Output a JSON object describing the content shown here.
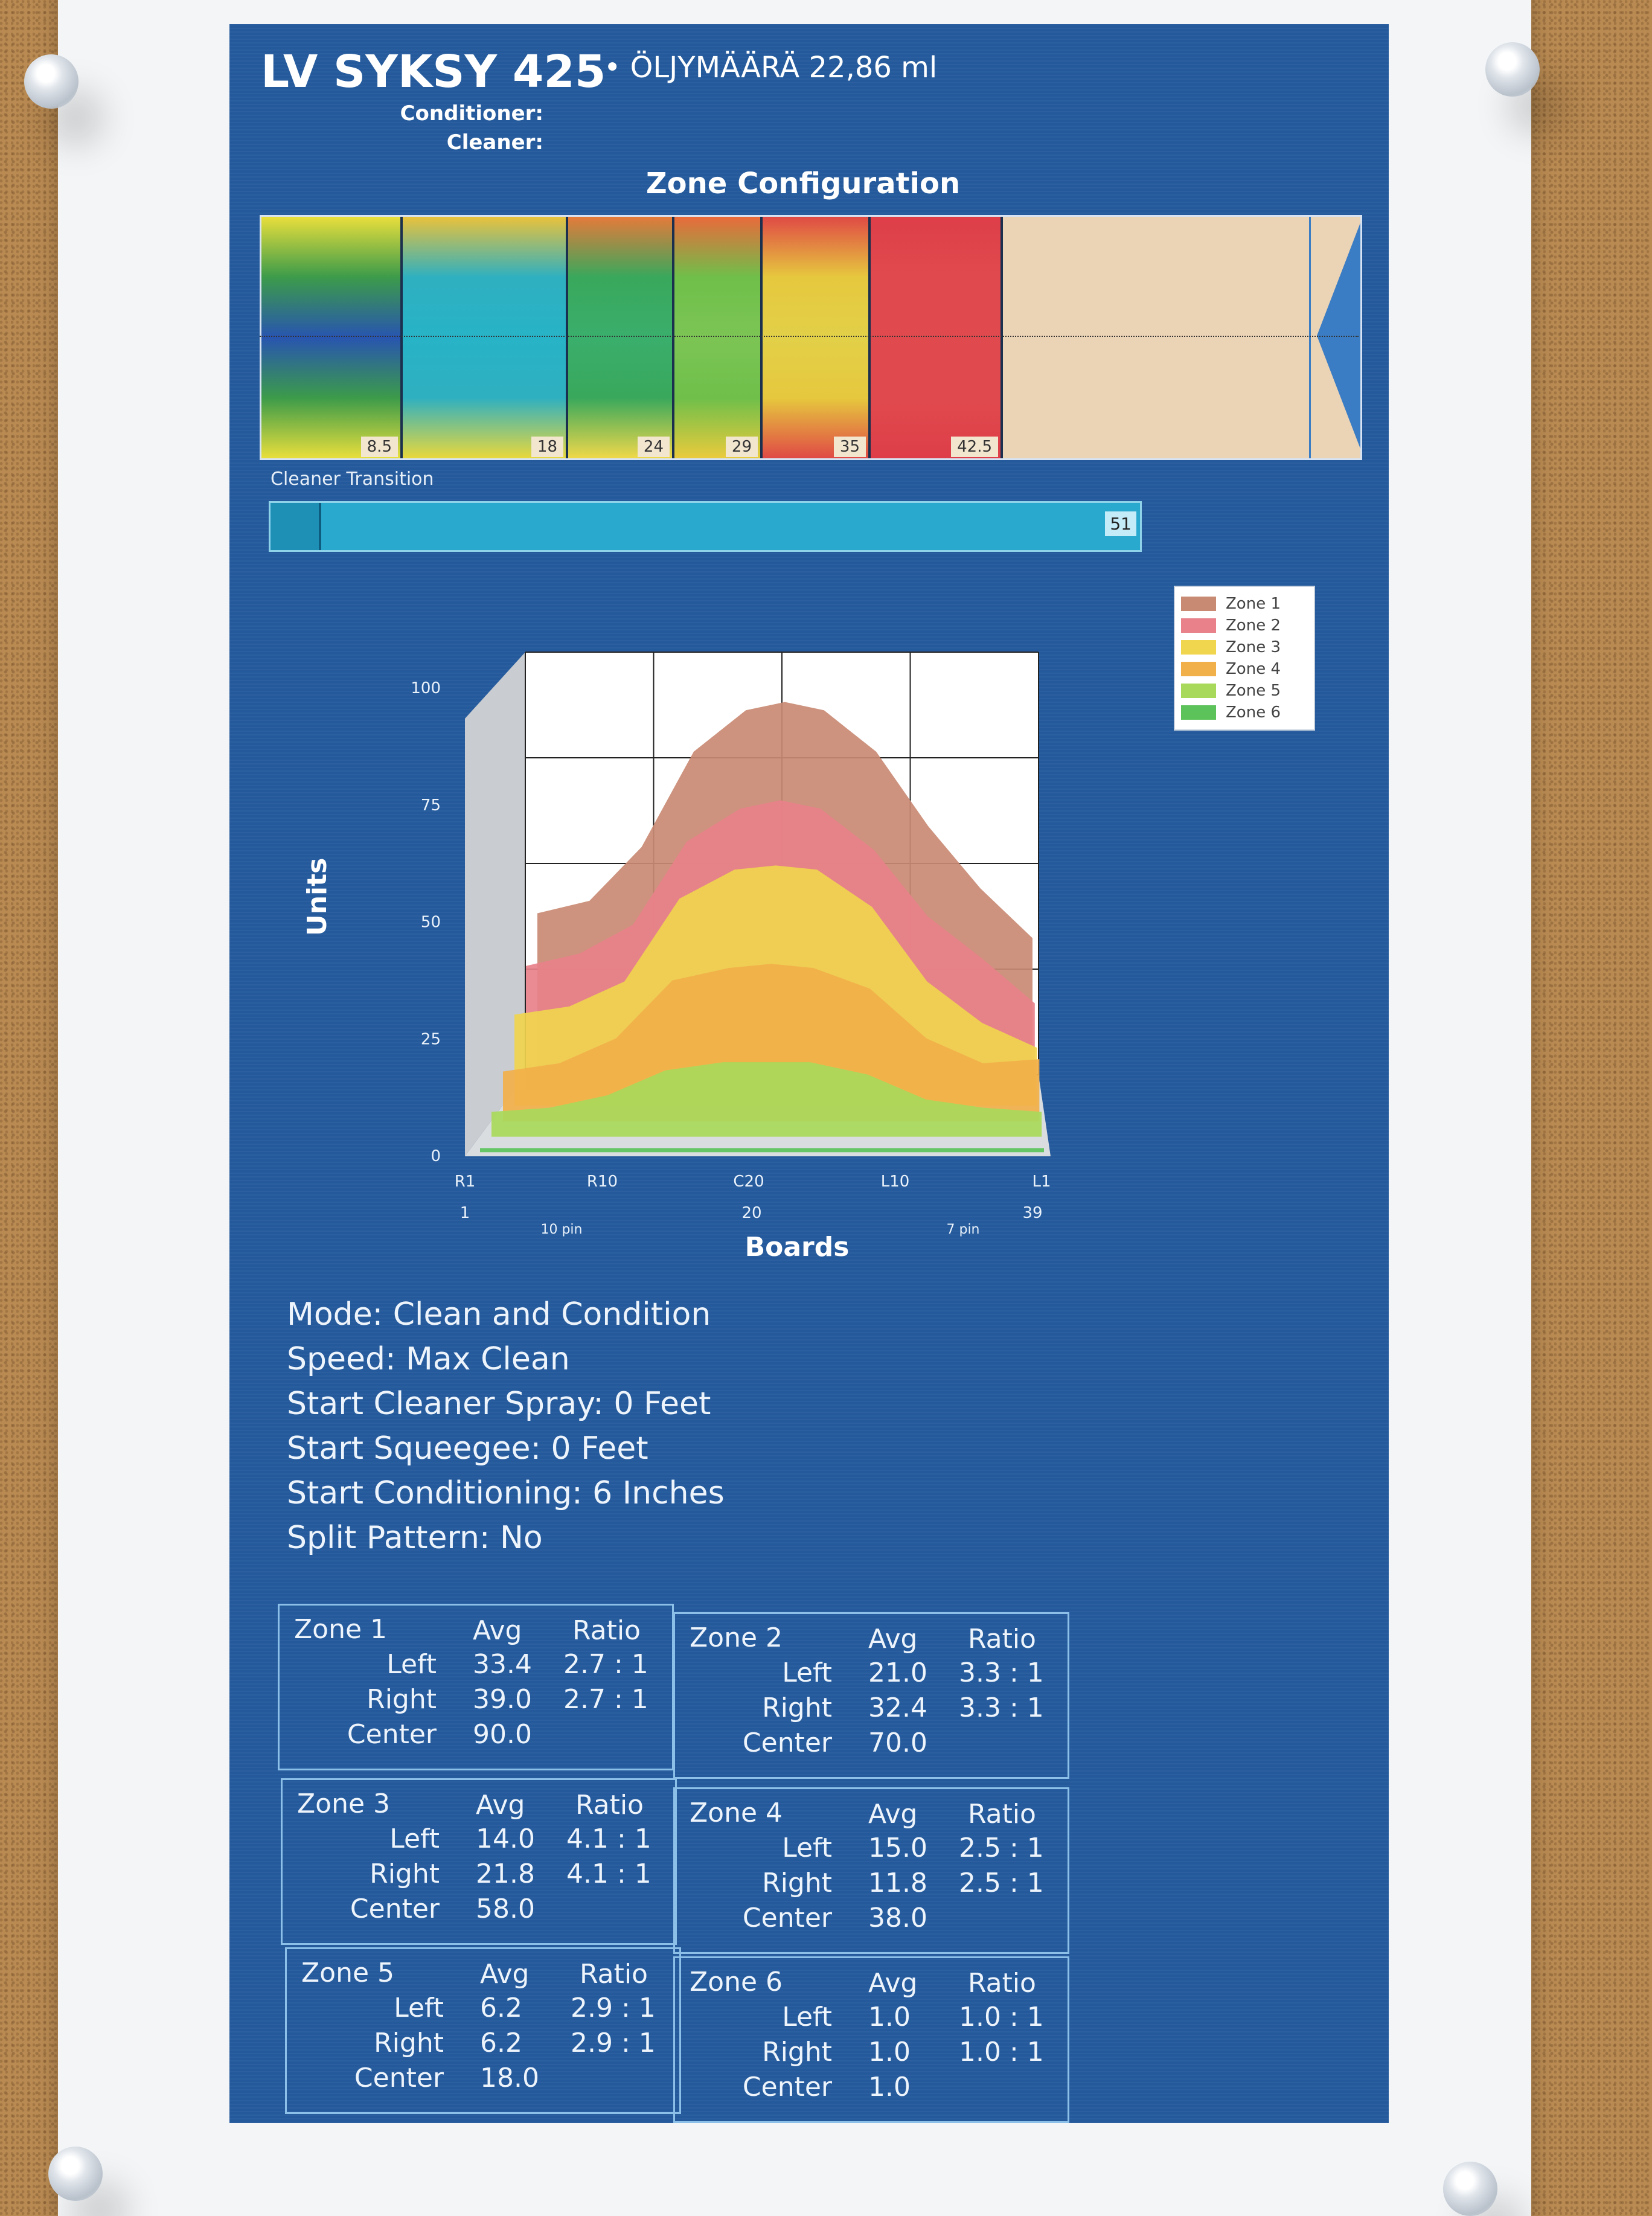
{
  "header": {
    "title": "LV SYKSY 425",
    "oil_amount": "• ÖLJYMÄÄRÄ  22,86 ml",
    "conditioner_label": "Conditioner:",
    "cleaner_label": "Cleaner:"
  },
  "zone_config": {
    "title": "Zone Configuration",
    "segments": [
      {
        "number": "8.5",
        "colors": [
          "#e9df3c",
          "#3c9b4a",
          "#2855b0",
          "#3c9b4a",
          "#e9df3c"
        ]
      },
      {
        "number": "18",
        "colors": [
          "#e9c23c",
          "#2fb0c0",
          "#27b3c7",
          "#2fb0c0",
          "#e9d83c"
        ]
      },
      {
        "number": "24",
        "colors": [
          "#e57a3a",
          "#39a85c",
          "#3aae6c",
          "#39a85c",
          "#f0d84a"
        ]
      },
      {
        "number": "29",
        "colors": [
          "#ea6a3c",
          "#6fbf4a",
          "#7cc555",
          "#6fbf4a",
          "#eacb3c"
        ]
      },
      {
        "number": "35",
        "colors": [
          "#e04a45",
          "#e6c83e",
          "#e2d048",
          "#e6c83e",
          "#e04a45"
        ]
      },
      {
        "number": "42.5",
        "colors": [
          "#de3e48",
          "#e04a4e",
          "#e04a4e",
          "#e04a4e",
          "#de3e48"
        ]
      }
    ]
  },
  "cleaner_transition": {
    "label": "Cleaner Transition",
    "value": "51"
  },
  "chart_data": {
    "type": "area",
    "title": "",
    "xlabel": "Boards",
    "ylabel": "Units",
    "ylim": [
      0,
      100
    ],
    "y_ticks": [
      "0",
      "25",
      "50",
      "75",
      "100"
    ],
    "x_tick_labels": [
      "R1",
      "R10",
      "C20",
      "L10",
      "L1"
    ],
    "x_numbers": [
      "1",
      "20",
      "39"
    ],
    "x_annotations": [
      "10 pin",
      "7 pin"
    ],
    "legend_position": "top-right",
    "x": [
      1,
      5,
      9,
      13,
      17,
      20,
      23,
      27,
      31,
      35,
      39
    ],
    "series": [
      {
        "name": "Zone 1",
        "color": "#c98a73",
        "values": [
          39,
          42,
          55,
          78,
          88,
          90,
          88,
          78,
          60,
          45,
          33
        ]
      },
      {
        "name": "Zone 2",
        "color": "#e8818a",
        "values": [
          30,
          33,
          40,
          60,
          68,
          70,
          68,
          58,
          42,
          32,
          21
        ]
      },
      {
        "name": "Zone 3",
        "color": "#f0d54e",
        "values": [
          22,
          24,
          30,
          50,
          57,
          58,
          57,
          48,
          30,
          20,
          14
        ]
      },
      {
        "name": "Zone 4",
        "color": "#f2b04a",
        "values": [
          12,
          14,
          20,
          34,
          37,
          38,
          37,
          32,
          20,
          14,
          15
        ]
      },
      {
        "name": "Zone 5",
        "color": "#a9d95a",
        "values": [
          6,
          7,
          10,
          16,
          18,
          18,
          18,
          15,
          9,
          7,
          6
        ]
      },
      {
        "name": "Zone 6",
        "color": "#5cc25a",
        "values": [
          1,
          1,
          1,
          1,
          1,
          1,
          1,
          1,
          1,
          1,
          1
        ]
      }
    ]
  },
  "settings": [
    "Mode: Clean and Condition",
    "Speed: Max Clean",
    "Start Cleaner Spray: 0 Feet",
    "Start Squeegee: 0 Feet",
    "Start Conditioning: 6 Inches",
    "Split Pattern: No"
  ],
  "zone_tables": [
    {
      "zone": "Zone 1",
      "avg_label": "Avg",
      "ratio_label": "Ratio",
      "rows": [
        [
          "Left",
          "33.4",
          "2.7 : 1"
        ],
        [
          "Right",
          "39.0",
          "2.7 : 1"
        ],
        [
          "Center",
          "90.0",
          ""
        ]
      ]
    },
    {
      "zone": "Zone 2",
      "avg_label": "Avg",
      "ratio_label": "Ratio",
      "rows": [
        [
          "Left",
          "21.0",
          "3.3 : 1"
        ],
        [
          "Right",
          "32.4",
          "3.3 : 1"
        ],
        [
          "Center",
          "70.0",
          ""
        ]
      ]
    },
    {
      "zone": "Zone 3",
      "avg_label": "Avg",
      "ratio_label": "Ratio",
      "rows": [
        [
          "Left",
          "14.0",
          "4.1 : 1"
        ],
        [
          "Right",
          "21.8",
          "4.1 : 1"
        ],
        [
          "Center",
          "58.0",
          ""
        ]
      ]
    },
    {
      "zone": "Zone 4",
      "avg_label": "Avg",
      "ratio_label": "Ratio",
      "rows": [
        [
          "Left",
          "15.0",
          "2.5 : 1"
        ],
        [
          "Right",
          "11.8",
          "2.5 : 1"
        ],
        [
          "Center",
          "38.0",
          ""
        ]
      ]
    },
    {
      "zone": "Zone 5",
      "avg_label": "Avg",
      "ratio_label": "Ratio",
      "rows": [
        [
          "Left",
          "6.2",
          "2.9 : 1"
        ],
        [
          "Right",
          "6.2",
          "2.9 : 1"
        ],
        [
          "Center",
          "18.0",
          ""
        ]
      ]
    },
    {
      "zone": "Zone 6",
      "avg_label": "Avg",
      "ratio_label": "Ratio",
      "rows": [
        [
          "Left",
          "1.0",
          "1.0 : 1"
        ],
        [
          "Right",
          "1.0",
          "1.0 : 1"
        ],
        [
          "Center",
          "1.0",
          ""
        ]
      ]
    }
  ]
}
